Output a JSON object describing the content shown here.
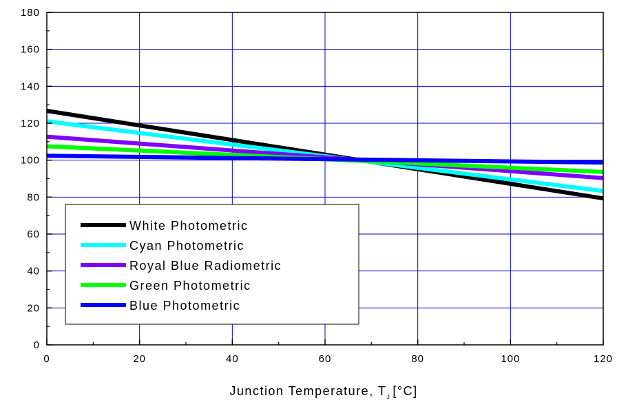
{
  "chart_data": {
    "type": "line",
    "title": "",
    "xlabel": "Junction Temperature, T",
    "xlabel_unit": "[°C]",
    "xlabel_subscript": "J",
    "ylabel": "",
    "xlim": [
      0,
      120
    ],
    "ylim": [
      0,
      180
    ],
    "xticks": [
      0,
      20,
      40,
      60,
      80,
      100,
      120
    ],
    "yticks": [
      0,
      20,
      40,
      60,
      80,
      100,
      120,
      140,
      160,
      180
    ],
    "grid": true,
    "grid_color": "#0000cc",
    "legend_position": "lower-left",
    "series": [
      {
        "name": "White Photometric",
        "color": "#000000",
        "x": [
          0,
          120
        ],
        "y": [
          126.7,
          79.3
        ]
      },
      {
        "name": "Cyan Photometric",
        "color": "#00ffff",
        "x": [
          0,
          120
        ],
        "y": [
          121.0,
          83.3
        ]
      },
      {
        "name": "Royal Blue Radiometric",
        "color": "#8000ff",
        "x": [
          0,
          120
        ],
        "y": [
          112.7,
          90.3
        ]
      },
      {
        "name": "Green Photometric",
        "color": "#00ff00",
        "x": [
          0,
          120
        ],
        "y": [
          107.5,
          93.6
        ]
      },
      {
        "name": "Blue Photometric",
        "color": "#0000ff",
        "x": [
          0,
          120
        ],
        "y": [
          102.4,
          98.7
        ]
      }
    ]
  }
}
